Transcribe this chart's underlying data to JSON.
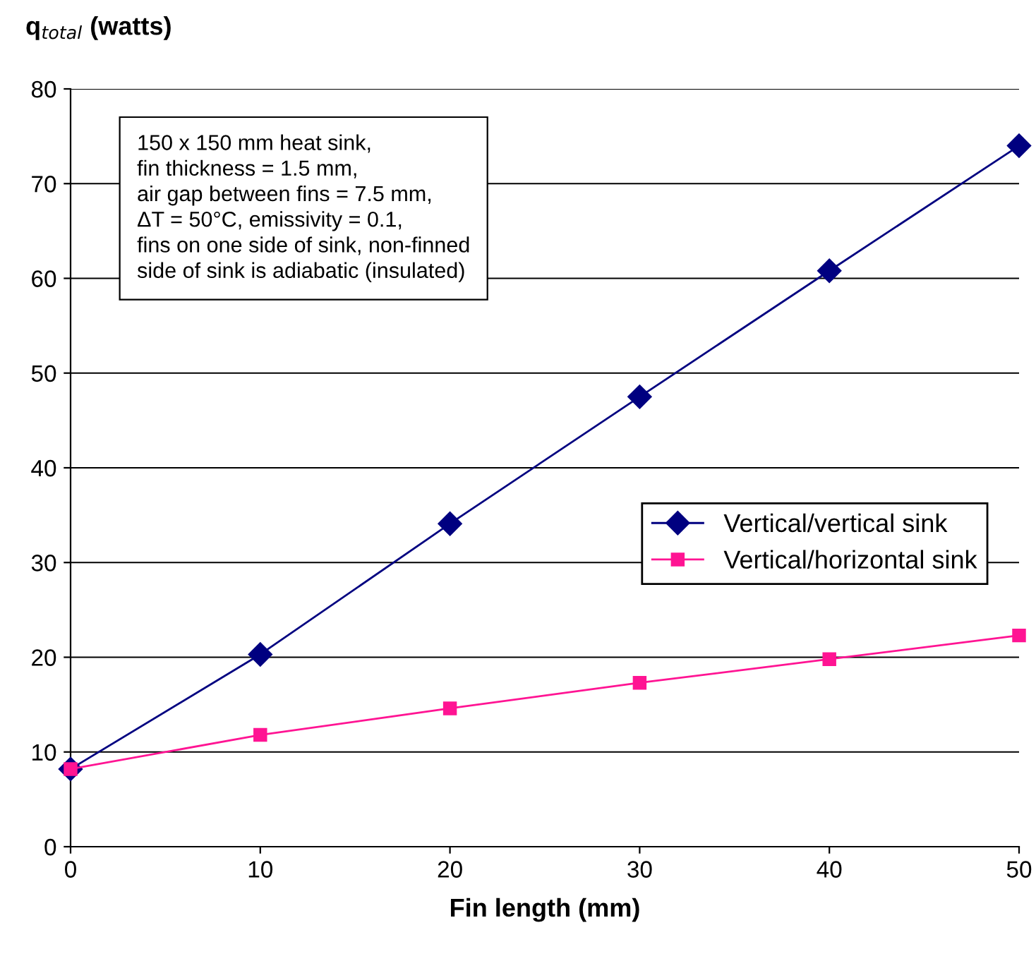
{
  "chart_data": {
    "type": "line",
    "ylabel": "q$_{total}$ (watts)",
    "xlabel": "Fin length (mm)",
    "x": [
      0,
      10,
      20,
      30,
      40,
      50
    ],
    "series": [
      {
        "name": "Vertical/vertical sink",
        "color": "#000080",
        "marker": "diamond",
        "values": [
          8.2,
          20.3,
          34.1,
          47.5,
          60.8,
          74.0
        ]
      },
      {
        "name": "Vertical/horizontal sink",
        "color": "#ff1493",
        "marker": "square",
        "values": [
          8.2,
          11.8,
          14.6,
          17.3,
          19.8,
          22.3
        ]
      }
    ],
    "xlim": [
      0,
      50
    ],
    "xticks": [
      0,
      10,
      20,
      30,
      40,
      50
    ],
    "ylim": [
      0,
      80
    ],
    "yticks": [
      0,
      10,
      20,
      30,
      40,
      50,
      60,
      70,
      80
    ],
    "grid": "y",
    "legend": "right",
    "line_style": "solid",
    "annotations": [
      "150 x 150 mm heat sink,\nfin thickness = 1.5 mm,\nair gap between fins = 7.5 mm,\nΔT = 50°C, emissivity = 0.1,\nfins on one side of sink, non-finned\nside of sink is adiabatic (insulated)"
    ]
  }
}
